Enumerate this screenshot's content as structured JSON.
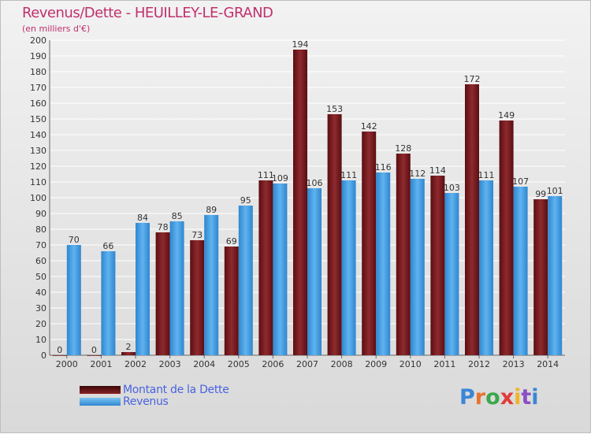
{
  "header": {
    "title": "Revenus/Dette - HEUILLEY-LE-GRAND",
    "subtitle": "(en milliers d'€)"
  },
  "legend": {
    "dette_label": "Montant de la Dette",
    "revenus_label": "Revenus"
  },
  "logo": {
    "letters": [
      "P",
      "r",
      "o",
      "x",
      "i",
      "t",
      "i"
    ]
  },
  "colors": {
    "dette": "#7a1c20",
    "revenus": "#3b9be0",
    "title": "#c0306c",
    "legend_text": "#4a63e0"
  },
  "chart_data": {
    "type": "bar",
    "categories": [
      "2000",
      "2001",
      "2002",
      "2003",
      "2004",
      "2005",
      "2006",
      "2007",
      "2008",
      "2009",
      "2010",
      "2011",
      "2012",
      "2013",
      "2014"
    ],
    "series": [
      {
        "name": "Montant de la Dette",
        "values": [
          0,
          0,
          2,
          78,
          73,
          69,
          111,
          194,
          153,
          142,
          128,
          114,
          172,
          149,
          99
        ]
      },
      {
        "name": "Revenus",
        "values": [
          70,
          66,
          84,
          85,
          89,
          95,
          109,
          106,
          111,
          116,
          112,
          103,
          111,
          107,
          101
        ]
      }
    ],
    "title": "Revenus/Dette - HEUILLEY-LE-GRAND",
    "ylabel": "(en milliers d'€)",
    "ylim": [
      0,
      200
    ],
    "yticks": [
      0,
      10,
      20,
      30,
      40,
      50,
      60,
      70,
      80,
      90,
      100,
      110,
      120,
      130,
      140,
      150,
      160,
      170,
      180,
      190,
      200
    ],
    "grid": true,
    "legend_position": "bottom-left"
  }
}
